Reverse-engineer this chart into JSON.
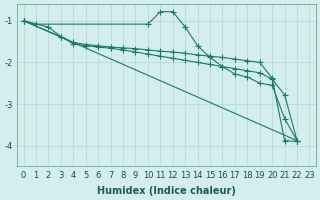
{
  "xlabel": "Humidex (Indice chaleur)",
  "bg_color": "#d4eeed",
  "grid_color": "#afd8d4",
  "line_color": "#1a7a6a",
  "xlim": [
    -0.5,
    23.5
  ],
  "ylim": [
    -4.5,
    -0.6
  ],
  "yticks": [
    -4,
    -3,
    -2,
    -1
  ],
  "xticks": [
    0,
    1,
    2,
    3,
    4,
    5,
    6,
    7,
    8,
    9,
    10,
    11,
    12,
    13,
    14,
    15,
    16,
    17,
    18,
    19,
    20,
    21,
    22,
    23
  ],
  "s1x": [
    0,
    1,
    10,
    11,
    12,
    13,
    14,
    15,
    16,
    17,
    18,
    19,
    20,
    21,
    22
  ],
  "s1y": [
    -1.0,
    -1.08,
    -1.08,
    -0.78,
    -0.78,
    -1.15,
    -1.6,
    -1.88,
    -2.1,
    -2.28,
    -2.35,
    -2.5,
    -2.55,
    -3.35,
    -3.88
  ],
  "s2x": [
    0,
    2,
    3,
    4,
    5,
    6,
    7,
    8,
    9,
    10,
    11,
    12,
    13,
    14,
    15,
    16,
    17,
    18,
    19,
    20,
    21,
    22
  ],
  "s2y": [
    -1.0,
    -1.15,
    -1.38,
    -1.52,
    -1.57,
    -1.6,
    -1.63,
    -1.65,
    -1.67,
    -1.7,
    -1.73,
    -1.75,
    -1.78,
    -1.82,
    -1.85,
    -1.88,
    -1.92,
    -1.96,
    -2.0,
    -2.38,
    -3.88,
    -3.9
  ],
  "s3x": [
    0,
    3,
    4,
    5,
    6,
    7,
    8,
    9,
    10,
    11,
    12,
    13,
    14,
    15,
    16,
    17,
    18,
    19,
    20,
    21,
    22
  ],
  "s3y": [
    -1.0,
    -1.38,
    -1.55,
    -1.6,
    -1.63,
    -1.66,
    -1.7,
    -1.75,
    -1.8,
    -1.85,
    -1.9,
    -1.95,
    -2.0,
    -2.05,
    -2.1,
    -2.15,
    -2.2,
    -2.25,
    -2.4,
    -2.78,
    -3.88
  ],
  "s4x": [
    0,
    22
  ],
  "s4y": [
    -1.0,
    -3.88
  ]
}
